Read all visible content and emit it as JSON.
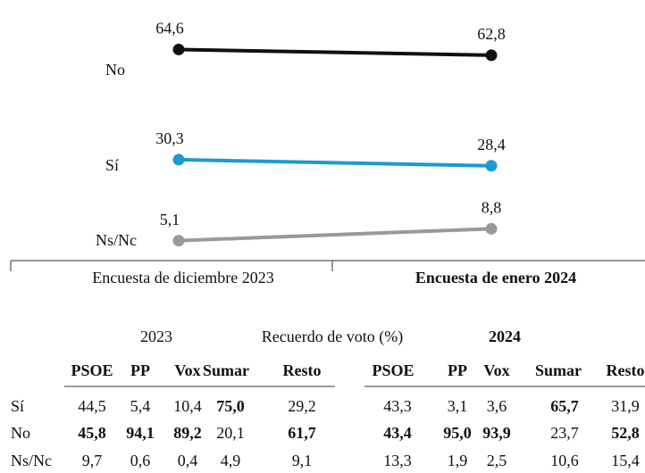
{
  "chart_data": {
    "type": "line",
    "categories": [
      "Encuesta de diciembre 2023",
      "Encuesta de enero 2024"
    ],
    "series": [
      {
        "name": "No",
        "color": "#111111",
        "values": [
          64.6,
          62.8
        ],
        "value_labels": [
          "64,6",
          "62,8"
        ]
      },
      {
        "name": "Sí",
        "color": "#1b9bd1",
        "values": [
          30.3,
          28.4
        ],
        "value_labels": [
          "30,3",
          "28,4"
        ]
      },
      {
        "name": "Ns/Nc",
        "color": "#999999",
        "values": [
          5.1,
          8.8
        ],
        "value_labels": [
          "5,1",
          "8,8"
        ]
      }
    ],
    "ylim": [
      0,
      70
    ],
    "grid": false,
    "bold_category": 1
  },
  "table": {
    "year_left": "2023",
    "title": "Recuerdo de voto (%)",
    "year_right": "2024",
    "columns": [
      "PSOE",
      "PP",
      "Vox",
      "Sumar",
      "Resto"
    ],
    "rows": [
      {
        "label": "Sí",
        "cells": [
          "44,5",
          "5,4",
          "10,4",
          "75,0",
          "29,2",
          "43,3",
          "3,1",
          "3,6",
          "65,7",
          "31,9"
        ],
        "bold": [
          3,
          8
        ]
      },
      {
        "label": "No",
        "cells": [
          "45,8",
          "94,1",
          "89,2",
          "20,1",
          "61,7",
          "43,4",
          "95,0",
          "93,9",
          "23,7",
          "52,8"
        ],
        "bold": [
          0,
          1,
          2,
          4,
          5,
          6,
          7,
          9
        ]
      },
      {
        "label": "Ns/Nc",
        "cells": [
          "9,7",
          "0,6",
          "0,4",
          "4,9",
          "9,1",
          "13,3",
          "1,9",
          "2,5",
          "10,6",
          "15,4"
        ],
        "bold": []
      }
    ]
  }
}
